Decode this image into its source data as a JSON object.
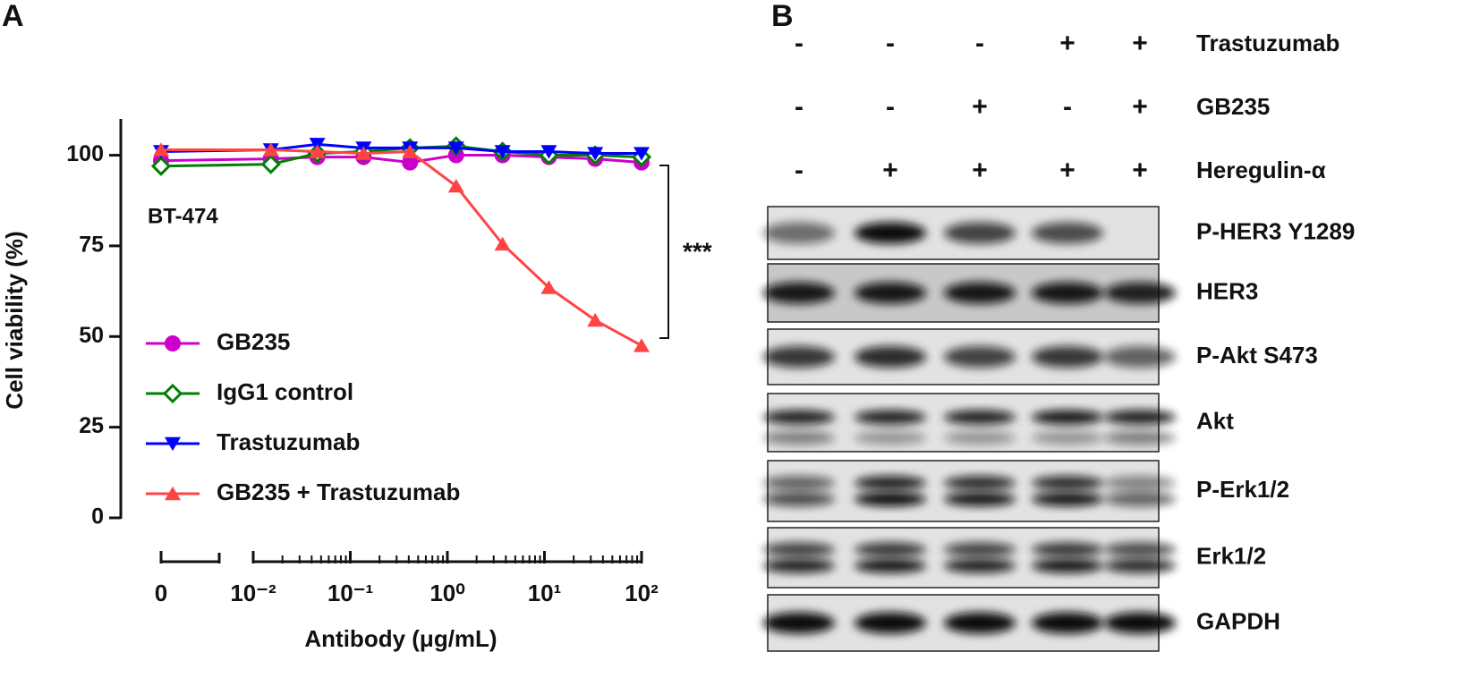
{
  "panel_labels": [
    "A",
    "B"
  ],
  "chart_data": {
    "type": "line",
    "xlabel": "Antibody (μg/mL)",
    "ylabel": "Cell viability (%)",
    "annotations": [
      "BT-474",
      "***"
    ],
    "x": [
      0,
      0.0152,
      0.0457,
      0.137,
      0.412,
      1.23,
      3.7,
      11.1,
      33.3,
      100
    ],
    "xlog": true,
    "xlim": [
      0.01,
      100
    ],
    "xticks": [
      0,
      {
        "value": 0.01,
        "label": "10⁻²"
      },
      {
        "value": 0.1,
        "label": "10⁻¹"
      },
      {
        "value": 1,
        "label": "10⁰"
      },
      {
        "value": 10,
        "label": "10¹"
      },
      {
        "value": 100,
        "label": "10²"
      }
    ],
    "ylim": [
      0,
      110
    ],
    "yticks": [
      0,
      25,
      50,
      75,
      100
    ],
    "legend": "lower left",
    "series": [
      {
        "name": "GB235",
        "color": "#cc00cc",
        "marker": "circle",
        "values": [
          98.5,
          99,
          99.5,
          99.5,
          98,
          100,
          100,
          99.5,
          99,
          98
        ]
      },
      {
        "name": "IgG1 control",
        "color": "#008000",
        "marker": "diamond",
        "values": [
          97,
          97.5,
          100.5,
          101,
          102,
          102.5,
          101,
          100,
          100,
          99.5
        ]
      },
      {
        "name": "Trastuzumab",
        "color": "#0000ff",
        "marker": "triangle-down",
        "values": [
          101,
          101.5,
          103,
          102,
          102,
          102,
          101,
          101,
          100.5,
          100.5
        ]
      },
      {
        "name": "GB235 + Trastuzumab",
        "color": "#ff4444",
        "marker": "triangle-up",
        "values": [
          101.5,
          101.5,
          101,
          100.5,
          101,
          91.5,
          75.5,
          63.5,
          54.5,
          47.5
        ]
      }
    ]
  },
  "blot": {
    "conditions": [
      {
        "name": "Trastuzumab",
        "signs": [
          "-",
          "-",
          "-",
          "+",
          "+"
        ]
      },
      {
        "name": "GB235",
        "signs": [
          "-",
          "-",
          "+",
          "-",
          "+"
        ]
      },
      {
        "name": "Heregulin-α",
        "signs": [
          "-",
          "+",
          "+",
          "+",
          "+"
        ]
      }
    ],
    "bands": [
      "P-HER3 Y1289",
      "HER3",
      "P-Akt S473",
      "Akt",
      "P-Erk1/2",
      "Erk1/2",
      "GAPDH"
    ]
  }
}
